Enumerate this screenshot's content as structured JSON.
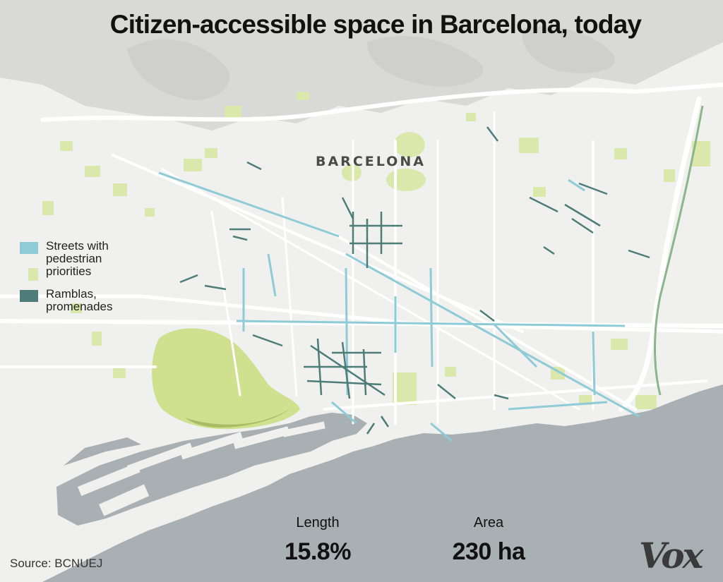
{
  "title": "Citizen-accessible space in Barcelona, today",
  "city_label": "BARCELONA",
  "legend": [
    {
      "label": "Streets with pedestrian priorities",
      "color": "#8ecbd6"
    },
    {
      "label": "Ramblas, promenades",
      "color": "#4d7c79"
    }
  ],
  "stats": {
    "length_label": "Length",
    "length_value": "15.8%",
    "area_label": "Area",
    "area_value": "230 ha"
  },
  "source": "Source: BCNUEJ",
  "logo": "Vox",
  "colors": {
    "land": "#f2f2f0",
    "sea": "#a9b0b3",
    "parks": "#d8e6a4",
    "hills": "#d6d6d4",
    "roads": "#ffffff",
    "pedestrian_streets": "#8ecbd6",
    "ramblas": "#4d7c79"
  }
}
